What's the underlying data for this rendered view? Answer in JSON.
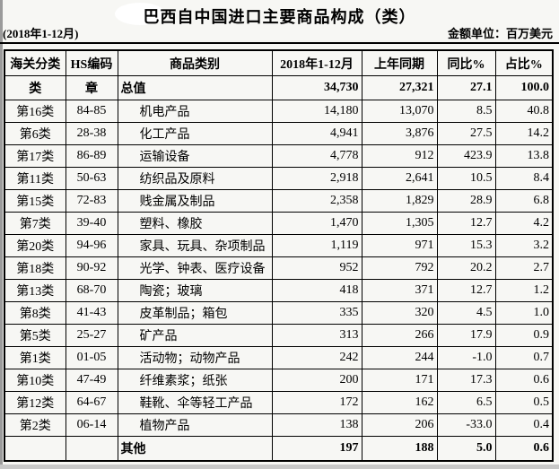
{
  "page": {
    "title": "巴西自中国进口主要商品构成（类）",
    "period": "(2018年1-12月)",
    "unit": "金额单位：百万美元"
  },
  "colors": {
    "text": "#000000",
    "background": "#f7f7f4",
    "table_border": "#000000",
    "left_edge_gray": "#9b9b9b",
    "bottom_edge_gray": "#c8c8c8",
    "whiteout": "#ffffff"
  },
  "table": {
    "headers": [
      "海关分类",
      "HS编码",
      "商品类别",
      "2018年1-12月",
      "上年同期",
      "同比%",
      "占比%"
    ],
    "rows": [
      {
        "cls": "类",
        "hs": "章",
        "name": "总值",
        "v2018": "34,730",
        "prev": "27,321",
        "yoy": "27.1",
        "share": "100.0",
        "bold": true,
        "indent": false
      },
      {
        "cls": "第16类",
        "hs": "84-85",
        "name": "机电产品",
        "v2018": "14,180",
        "prev": "13,070",
        "yoy": "8.5",
        "share": "40.8",
        "bold": false,
        "indent": true
      },
      {
        "cls": "第6类",
        "hs": "28-38",
        "name": "化工产品",
        "v2018": "4,941",
        "prev": "3,876",
        "yoy": "27.5",
        "share": "14.2",
        "bold": false,
        "indent": true
      },
      {
        "cls": "第17类",
        "hs": "86-89",
        "name": "运输设备",
        "v2018": "4,778",
        "prev": "912",
        "yoy": "423.9",
        "share": "13.8",
        "bold": false,
        "indent": true
      },
      {
        "cls": "第11类",
        "hs": "50-63",
        "name": "纺织品及原料",
        "v2018": "2,918",
        "prev": "2,641",
        "yoy": "10.5",
        "share": "8.4",
        "bold": false,
        "indent": true
      },
      {
        "cls": "第15类",
        "hs": "72-83",
        "name": "贱金属及制品",
        "v2018": "2,358",
        "prev": "1,829",
        "yoy": "28.9",
        "share": "6.8",
        "bold": false,
        "indent": true
      },
      {
        "cls": "第7类",
        "hs": "39-40",
        "name": "塑料、橡胶",
        "v2018": "1,470",
        "prev": "1,305",
        "yoy": "12.7",
        "share": "4.2",
        "bold": false,
        "indent": true
      },
      {
        "cls": "第20类",
        "hs": "94-96",
        "name": "家具、玩具、杂项制品",
        "v2018": "1,119",
        "prev": "971",
        "yoy": "15.3",
        "share": "3.2",
        "bold": false,
        "indent": true
      },
      {
        "cls": "第18类",
        "hs": "90-92",
        "name": "光学、钟表、医疗设备",
        "v2018": "952",
        "prev": "792",
        "yoy": "20.2",
        "share": "2.7",
        "bold": false,
        "indent": true
      },
      {
        "cls": "第13类",
        "hs": "68-70",
        "name": "陶瓷；玻璃",
        "v2018": "418",
        "prev": "371",
        "yoy": "12.7",
        "share": "1.2",
        "bold": false,
        "indent": true
      },
      {
        "cls": "第8类",
        "hs": "41-43",
        "name": "皮革制品；箱包",
        "v2018": "335",
        "prev": "320",
        "yoy": "4.5",
        "share": "1.0",
        "bold": false,
        "indent": true
      },
      {
        "cls": "第5类",
        "hs": "25-27",
        "name": "矿产品",
        "v2018": "313",
        "prev": "266",
        "yoy": "17.9",
        "share": "0.9",
        "bold": false,
        "indent": true
      },
      {
        "cls": "第1类",
        "hs": "01-05",
        "name": "活动物；动物产品",
        "v2018": "242",
        "prev": "244",
        "yoy": "-1.0",
        "share": "0.7",
        "bold": false,
        "indent": true
      },
      {
        "cls": "第10类",
        "hs": "47-49",
        "name": "纤维素浆；纸张",
        "v2018": "200",
        "prev": "171",
        "yoy": "17.3",
        "share": "0.6",
        "bold": false,
        "indent": true
      },
      {
        "cls": "第12类",
        "hs": "64-67",
        "name": "鞋靴、伞等轻工产品",
        "v2018": "172",
        "prev": "162",
        "yoy": "6.5",
        "share": "0.5",
        "bold": false,
        "indent": true
      },
      {
        "cls": "第2类",
        "hs": "06-14",
        "name": "植物产品",
        "v2018": "138",
        "prev": "206",
        "yoy": "-33.0",
        "share": "0.4",
        "bold": false,
        "indent": true
      },
      {
        "cls": "",
        "hs": "",
        "name": "其他",
        "v2018": "197",
        "prev": "188",
        "yoy": "5.0",
        "share": "0.6",
        "bold": true,
        "indent": false
      }
    ]
  }
}
